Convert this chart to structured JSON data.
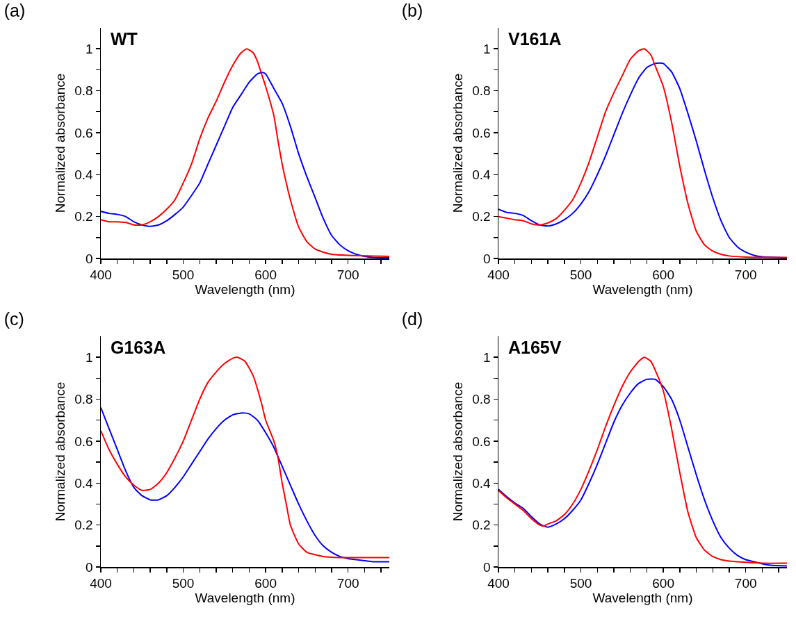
{
  "chart_data": [
    {
      "type": "line",
      "title": "(a)",
      "annotations": [
        "WT"
      ],
      "xlabel": "Wavelength (nm)",
      "ylabel": "Normalized absorbance",
      "xlim": [
        400,
        750
      ],
      "ylim": [
        0,
        1.1
      ],
      "xticks": [
        400,
        {
          "value": 420,
          "label": null
        },
        {
          "value": 440,
          "label": null
        },
        {
          "value": 460,
          "label": null
        },
        {
          "value": 480,
          "label": null
        },
        500,
        {
          "value": 520,
          "label": null
        },
        {
          "value": 540,
          "label": null
        },
        {
          "value": 560,
          "label": null
        },
        {
          "value": 580,
          "label": null
        },
        600,
        {
          "value": 620,
          "label": null
        },
        {
          "value": 640,
          "label": null
        },
        {
          "value": 660,
          "label": null
        },
        {
          "value": 680,
          "label": null
        },
        700,
        {
          "value": 720,
          "label": null
        },
        {
          "value": 740,
          "label": null
        }
      ],
      "yticks": [
        0,
        {
          "value": 0.1,
          "label": null
        },
        0.2,
        {
          "value": 0.3,
          "label": null
        },
        0.4,
        {
          "value": 0.5,
          "label": null
        },
        0.6,
        {
          "value": 0.7,
          "label": null
        },
        0.8,
        {
          "value": 0.9,
          "label": null
        },
        1
      ],
      "grid": false,
      "marker": "none",
      "line_style": "solid",
      "series": [
        {
          "color": "#0000ff",
          "x": [
            400,
            410,
            420,
            430,
            440,
            450,
            460,
            470,
            480,
            490,
            500,
            510,
            520,
            530,
            540,
            550,
            560,
            570,
            580,
            590,
            596,
            600,
            610,
            620,
            630,
            640,
            650,
            660,
            670,
            680,
            690,
            700,
            710,
            720,
            730,
            750
          ],
          "values": [
            0.225,
            0.215,
            0.21,
            0.2,
            0.175,
            0.16,
            0.153,
            0.16,
            0.18,
            0.21,
            0.245,
            0.3,
            0.36,
            0.45,
            0.54,
            0.63,
            0.72,
            0.78,
            0.84,
            0.88,
            0.887,
            0.88,
            0.81,
            0.74,
            0.63,
            0.5,
            0.39,
            0.29,
            0.19,
            0.11,
            0.065,
            0.037,
            0.02,
            0.01,
            0.005,
            0.003
          ]
        },
        {
          "color": "#ff0000",
          "x": [
            400,
            410,
            420,
            430,
            440,
            450,
            460,
            470,
            480,
            490,
            500,
            510,
            520,
            530,
            540,
            550,
            560,
            570,
            577,
            585,
            590,
            595,
            600,
            610,
            615,
            620,
            625,
            630,
            640,
            650,
            660,
            670,
            680,
            700,
            750
          ],
          "values": [
            0.185,
            0.175,
            0.175,
            0.172,
            0.16,
            0.16,
            0.175,
            0.2,
            0.235,
            0.28,
            0.36,
            0.45,
            0.57,
            0.67,
            0.75,
            0.84,
            0.92,
            0.98,
            1.0,
            0.98,
            0.94,
            0.88,
            0.82,
            0.68,
            0.56,
            0.45,
            0.36,
            0.28,
            0.15,
            0.08,
            0.045,
            0.03,
            0.02,
            0.015,
            0.01
          ]
        }
      ]
    },
    {
      "type": "line",
      "title": "(b)",
      "annotations": [
        "V161A"
      ],
      "xlabel": "Wavelength (nm)",
      "ylabel": "Normalized absorbance",
      "xlim": [
        400,
        750
      ],
      "ylim": [
        0,
        1.1
      ],
      "xticks": [
        400,
        {
          "value": 420,
          "label": null
        },
        {
          "value": 440,
          "label": null
        },
        {
          "value": 460,
          "label": null
        },
        {
          "value": 480,
          "label": null
        },
        500,
        {
          "value": 520,
          "label": null
        },
        {
          "value": 540,
          "label": null
        },
        {
          "value": 560,
          "label": null
        },
        {
          "value": 580,
          "label": null
        },
        600,
        {
          "value": 620,
          "label": null
        },
        {
          "value": 640,
          "label": null
        },
        {
          "value": 660,
          "label": null
        },
        {
          "value": 680,
          "label": null
        },
        700,
        {
          "value": 720,
          "label": null
        },
        {
          "value": 740,
          "label": null
        }
      ],
      "yticks": [
        0,
        {
          "value": 0.1,
          "label": null
        },
        0.2,
        {
          "value": 0.3,
          "label": null
        },
        0.4,
        {
          "value": 0.5,
          "label": null
        },
        0.6,
        {
          "value": 0.7,
          "label": null
        },
        0.8,
        {
          "value": 0.9,
          "label": null
        },
        1
      ],
      "grid": false,
      "marker": "none",
      "line_style": "solid",
      "series": [
        {
          "color": "#0000ff",
          "x": [
            400,
            410,
            420,
            430,
            440,
            450,
            460,
            470,
            480,
            490,
            500,
            510,
            520,
            530,
            540,
            550,
            560,
            570,
            580,
            590,
            596,
            600,
            610,
            620,
            630,
            640,
            650,
            660,
            670,
            680,
            690,
            700,
            710,
            720,
            750
          ],
          "values": [
            0.235,
            0.22,
            0.215,
            0.205,
            0.18,
            0.16,
            0.155,
            0.165,
            0.185,
            0.215,
            0.26,
            0.32,
            0.4,
            0.49,
            0.59,
            0.69,
            0.78,
            0.86,
            0.91,
            0.93,
            0.932,
            0.93,
            0.89,
            0.81,
            0.69,
            0.56,
            0.42,
            0.29,
            0.18,
            0.1,
            0.055,
            0.03,
            0.015,
            0.008,
            0.003
          ]
        },
        {
          "color": "#ff0000",
          "x": [
            400,
            420,
            430,
            440,
            450,
            460,
            470,
            480,
            490,
            500,
            510,
            520,
            530,
            540,
            550,
            560,
            570,
            577,
            585,
            590,
            600,
            610,
            620,
            630,
            640,
            650,
            660,
            670,
            680,
            700,
            750
          ],
          "values": [
            0.2,
            0.185,
            0.18,
            0.165,
            0.16,
            0.17,
            0.19,
            0.23,
            0.28,
            0.36,
            0.46,
            0.58,
            0.7,
            0.79,
            0.87,
            0.95,
            0.99,
            1.0,
            0.97,
            0.92,
            0.82,
            0.65,
            0.44,
            0.26,
            0.13,
            0.065,
            0.035,
            0.02,
            0.012,
            0.007,
            0.005
          ]
        }
      ]
    },
    {
      "type": "line",
      "title": "(c)",
      "annotations": [
        "G163A"
      ],
      "xlabel": "Wavelength (nm)",
      "ylabel": "Normalized absorbance",
      "xlim": [
        400,
        750
      ],
      "ylim": [
        0,
        1.1
      ],
      "xticks": [
        400,
        {
          "value": 420,
          "label": null
        },
        {
          "value": 440,
          "label": null
        },
        {
          "value": 460,
          "label": null
        },
        {
          "value": 480,
          "label": null
        },
        500,
        {
          "value": 520,
          "label": null
        },
        {
          "value": 540,
          "label": null
        },
        {
          "value": 560,
          "label": null
        },
        {
          "value": 580,
          "label": null
        },
        600,
        {
          "value": 620,
          "label": null
        },
        {
          "value": 640,
          "label": null
        },
        {
          "value": 660,
          "label": null
        },
        {
          "value": 680,
          "label": null
        },
        700,
        {
          "value": 720,
          "label": null
        },
        {
          "value": 740,
          "label": null
        }
      ],
      "yticks": [
        0,
        {
          "value": 0.1,
          "label": null
        },
        0.2,
        {
          "value": 0.3,
          "label": null
        },
        0.4,
        {
          "value": 0.5,
          "label": null
        },
        0.6,
        {
          "value": 0.7,
          "label": null
        },
        0.8,
        {
          "value": 0.9,
          "label": null
        },
        1
      ],
      "grid": false,
      "marker": "none",
      "line_style": "solid",
      "series": [
        {
          "color": "#0000ff",
          "x": [
            400,
            410,
            420,
            430,
            440,
            450,
            460,
            470,
            480,
            490,
            500,
            510,
            520,
            530,
            540,
            550,
            560,
            572,
            580,
            590,
            600,
            610,
            620,
            630,
            640,
            650,
            660,
            670,
            680,
            690,
            700,
            710,
            720,
            730,
            750
          ],
          "values": [
            0.76,
            0.66,
            0.56,
            0.46,
            0.38,
            0.34,
            0.32,
            0.32,
            0.34,
            0.38,
            0.43,
            0.49,
            0.55,
            0.61,
            0.66,
            0.7,
            0.725,
            0.735,
            0.73,
            0.7,
            0.64,
            0.57,
            0.48,
            0.39,
            0.3,
            0.22,
            0.15,
            0.1,
            0.07,
            0.05,
            0.04,
            0.035,
            0.03,
            0.025,
            0.025
          ]
        },
        {
          "color": "#ff0000",
          "x": [
            400,
            410,
            420,
            430,
            440,
            450,
            460,
            470,
            480,
            490,
            500,
            510,
            520,
            530,
            540,
            550,
            560,
            566,
            575,
            585,
            595,
            600,
            610,
            615,
            620,
            625,
            630,
            640,
            650,
            670,
            690,
            720,
            750
          ],
          "values": [
            0.65,
            0.56,
            0.49,
            0.43,
            0.39,
            0.365,
            0.37,
            0.4,
            0.45,
            0.52,
            0.6,
            0.7,
            0.8,
            0.88,
            0.93,
            0.97,
            0.995,
            1.0,
            0.98,
            0.91,
            0.78,
            0.7,
            0.6,
            0.52,
            0.4,
            0.3,
            0.2,
            0.11,
            0.07,
            0.05,
            0.045,
            0.045,
            0.045
          ]
        }
      ]
    },
    {
      "type": "line",
      "title": "(d)",
      "annotations": [
        "A165V"
      ],
      "xlabel": "Wavelength (nm)",
      "ylabel": "Normalized absorbance",
      "xlim": [
        400,
        750
      ],
      "ylim": [
        0,
        1.1
      ],
      "xticks": [
        400,
        {
          "value": 420,
          "label": null
        },
        {
          "value": 440,
          "label": null
        },
        {
          "value": 460,
          "label": null
        },
        {
          "value": 480,
          "label": null
        },
        500,
        {
          "value": 520,
          "label": null
        },
        {
          "value": 540,
          "label": null
        },
        {
          "value": 560,
          "label": null
        },
        {
          "value": 580,
          "label": null
        },
        600,
        {
          "value": 620,
          "label": null
        },
        {
          "value": 640,
          "label": null
        },
        {
          "value": 660,
          "label": null
        },
        {
          "value": 680,
          "label": null
        },
        700,
        {
          "value": 720,
          "label": null
        },
        {
          "value": 740,
          "label": null
        }
      ],
      "yticks": [
        0,
        {
          "value": 0.1,
          "label": null
        },
        0.2,
        {
          "value": 0.3,
          "label": null
        },
        0.4,
        {
          "value": 0.5,
          "label": null
        },
        0.6,
        {
          "value": 0.7,
          "label": null
        },
        0.8,
        {
          "value": 0.9,
          "label": null
        },
        1
      ],
      "grid": false,
      "marker": "none",
      "line_style": "solid",
      "series": [
        {
          "color": "#0000ff",
          "x": [
            400,
            410,
            420,
            430,
            440,
            450,
            460,
            470,
            480,
            490,
            500,
            510,
            520,
            530,
            540,
            550,
            560,
            570,
            580,
            590,
            600,
            610,
            620,
            630,
            640,
            650,
            660,
            670,
            680,
            690,
            700,
            710,
            720,
            730,
            750
          ],
          "values": [
            0.37,
            0.335,
            0.305,
            0.28,
            0.24,
            0.205,
            0.19,
            0.205,
            0.23,
            0.27,
            0.32,
            0.4,
            0.49,
            0.59,
            0.69,
            0.77,
            0.83,
            0.875,
            0.895,
            0.895,
            0.86,
            0.8,
            0.7,
            0.57,
            0.44,
            0.32,
            0.22,
            0.14,
            0.09,
            0.055,
            0.035,
            0.025,
            0.015,
            0.008,
            0.005
          ]
        },
        {
          "color": "#ff0000",
          "x": [
            400,
            410,
            420,
            430,
            440,
            450,
            455,
            460,
            470,
            480,
            490,
            500,
            510,
            520,
            530,
            540,
            550,
            560,
            570,
            577,
            585,
            590,
            600,
            610,
            620,
            630,
            640,
            650,
            660,
            670,
            680,
            700,
            720,
            750
          ],
          "values": [
            0.365,
            0.33,
            0.3,
            0.27,
            0.23,
            0.2,
            0.195,
            0.205,
            0.22,
            0.25,
            0.3,
            0.37,
            0.46,
            0.56,
            0.67,
            0.77,
            0.86,
            0.93,
            0.98,
            1.0,
            0.98,
            0.94,
            0.84,
            0.66,
            0.45,
            0.26,
            0.14,
            0.08,
            0.05,
            0.035,
            0.028,
            0.022,
            0.018,
            0.018
          ]
        }
      ]
    }
  ]
}
